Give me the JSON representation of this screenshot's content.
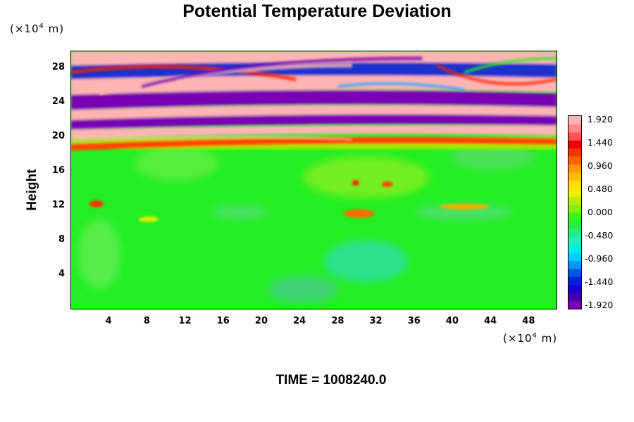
{
  "chart_data": {
    "type": "heatmap",
    "title": "Potential Temperature Deviation",
    "ylabel": "Height",
    "y_unit": "(×10⁴ m)",
    "x_unit": "(×10⁴ m)",
    "xticks": [
      "4",
      "8",
      "12",
      "16",
      "20",
      "24",
      "28",
      "32",
      "36",
      "40",
      "44",
      "48"
    ],
    "yticks": [
      "4",
      "8",
      "12",
      "16",
      "20",
      "24",
      "28"
    ],
    "xlim": [
      0,
      51
    ],
    "ylim": [
      0,
      30
    ],
    "colorbar": {
      "ticks": [
        "1.920",
        "1.440",
        "0.960",
        "0.480",
        "0.000",
        "-0.480",
        "-0.960",
        "-1.440",
        "-1.920"
      ],
      "range": [
        -1.92,
        1.92
      ]
    },
    "footer": "TIME = 1008240.0",
    "colors": {
      "low": "#7a00b4",
      "neutral": "#22ee22",
      "high": "#ffb4b4"
    }
  }
}
